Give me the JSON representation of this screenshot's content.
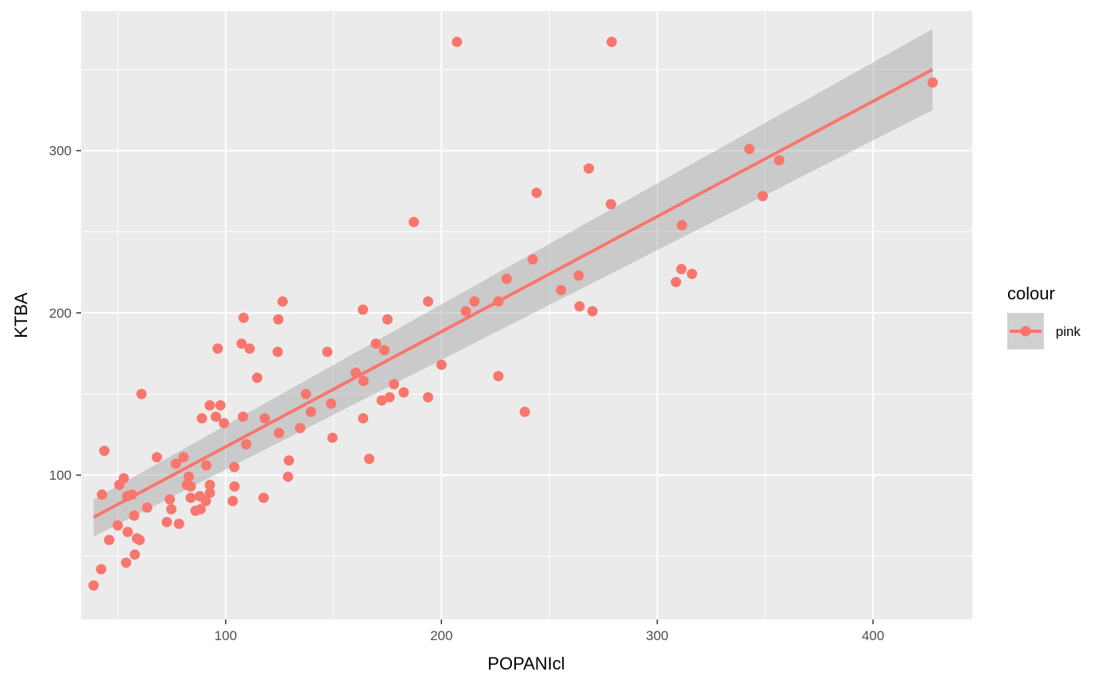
{
  "chart_data": {
    "type": "scatter",
    "title": "",
    "xlabel": "POPANIcl",
    "ylabel": "KTBA",
    "xlim": [
      33,
      446
    ],
    "ylim": [
      11,
      386
    ],
    "x_ticks": [
      100,
      200,
      300,
      400
    ],
    "x_tick_labels": [
      "100",
      "200",
      "300",
      "400"
    ],
    "y_ticks": [
      100,
      200,
      300
    ],
    "y_tick_labels": [
      "100",
      "200",
      "300"
    ],
    "grid": true,
    "legend": {
      "position": "right",
      "title": "colour",
      "entries": [
        "pink"
      ]
    },
    "series": [
      {
        "name": "pink",
        "color": "#F8766D",
        "points": [
          [
            38.8,
            32
          ],
          [
            42.3,
            42
          ],
          [
            42.7,
            88
          ],
          [
            43.8,
            115
          ],
          [
            46,
            60
          ],
          [
            50,
            69
          ],
          [
            50.7,
            94
          ],
          [
            52.8,
            98
          ],
          [
            53.9,
            46
          ],
          [
            54.6,
            65
          ],
          [
            54.4,
            87
          ],
          [
            56.6,
            88
          ],
          [
            57.6,
            75
          ],
          [
            57.9,
            51
          ],
          [
            58.9,
            61
          ],
          [
            60.1,
            60
          ],
          [
            61,
            150
          ],
          [
            63.6,
            80
          ],
          [
            68.1,
            111
          ],
          [
            72.7,
            71
          ],
          [
            74.1,
            85
          ],
          [
            74.8,
            79
          ],
          [
            76.9,
            107
          ],
          [
            78.4,
            70
          ],
          [
            80.5,
            111
          ],
          [
            82,
            94
          ],
          [
            82.9,
            99
          ],
          [
            83.8,
            86
          ],
          [
            83.8,
            93
          ],
          [
            86,
            78
          ],
          [
            88,
            87
          ],
          [
            88.4,
            79
          ],
          [
            89,
            135
          ],
          [
            90.8,
            84
          ],
          [
            91,
            106
          ],
          [
            92.6,
            143
          ],
          [
            92.7,
            89
          ],
          [
            92.7,
            94
          ],
          [
            95.5,
            136
          ],
          [
            96.3,
            178
          ],
          [
            97.6,
            143
          ],
          [
            99.2,
            132
          ],
          [
            103.3,
            84
          ],
          [
            104,
            105
          ],
          [
            104.1,
            93
          ],
          [
            107.4,
            181
          ],
          [
            108,
            136
          ],
          [
            108.3,
            197
          ],
          [
            109.5,
            119
          ],
          [
            111.1,
            178
          ],
          [
            114.6,
            160
          ],
          [
            117.6,
            86
          ],
          [
            118.1,
            135
          ],
          [
            124.1,
            176
          ],
          [
            124.4,
            196
          ],
          [
            124.7,
            126
          ],
          [
            126.4,
            207
          ],
          [
            128.9,
            99
          ],
          [
            129.3,
            109
          ],
          [
            134.5,
            129
          ],
          [
            137.2,
            150
          ],
          [
            139.5,
            139
          ],
          [
            147.1,
            176
          ],
          [
            148.9,
            144
          ],
          [
            149.5,
            123
          ],
          [
            160.3,
            163
          ],
          [
            163.6,
            202
          ],
          [
            163.9,
            158
          ],
          [
            163.7,
            135
          ],
          [
            166.5,
            110
          ],
          [
            169.6,
            181
          ],
          [
            172.3,
            146
          ],
          [
            173.5,
            177
          ],
          [
            175,
            196
          ],
          [
            176,
            148
          ],
          [
            178,
            156
          ],
          [
            182.5,
            151
          ],
          [
            187.2,
            256
          ],
          [
            193.8,
            207
          ],
          [
            193.8,
            148
          ],
          [
            200,
            168
          ],
          [
            207.2,
            367
          ],
          [
            211.3,
            201
          ],
          [
            215.3,
            207
          ],
          [
            226.4,
            161
          ],
          [
            226.4,
            207
          ],
          [
            230.2,
            221
          ],
          [
            238.6,
            139
          ],
          [
            242.3,
            233
          ],
          [
            244.1,
            274
          ],
          [
            255.4,
            214
          ],
          [
            263.6,
            223
          ],
          [
            264,
            204
          ],
          [
            268.3,
            289
          ],
          [
            270,
            201
          ],
          [
            278.5,
            267
          ],
          [
            278.9,
            367
          ],
          [
            308.7,
            219
          ],
          [
            311.2,
            227
          ],
          [
            311.4,
            254
          ],
          [
            316.1,
            224
          ],
          [
            342.7,
            301
          ],
          [
            348.9,
            272
          ],
          [
            356.5,
            294
          ],
          [
            427.6,
            342
          ]
        ]
      }
    ],
    "smooth": {
      "method": "lm",
      "color": "#F8766D",
      "band_color": "#999999",
      "x_range": [
        38.8,
        427.6
      ],
      "line_at_x_range": [
        74,
        350
      ],
      "band_at_x_range": [
        [
          62,
          85
        ],
        [
          325,
          375
        ]
      ]
    }
  }
}
